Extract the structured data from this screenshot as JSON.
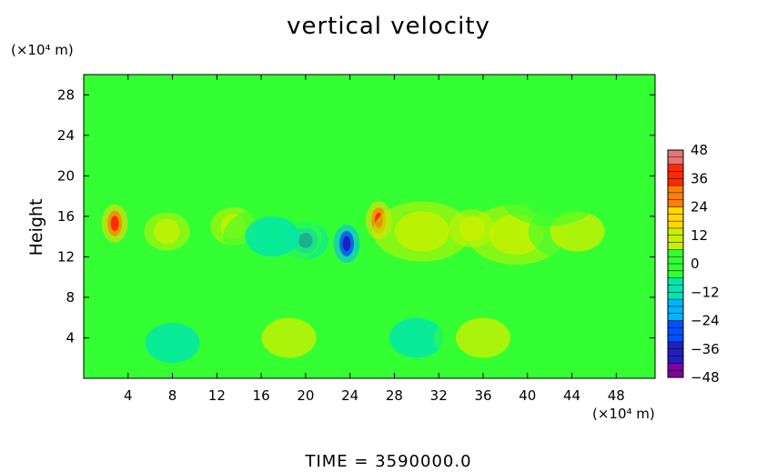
{
  "chart_data": {
    "type": "heatmap",
    "title": "vertical velocity",
    "xlabel": "",
    "ylabel": "Height",
    "x_unit": "(×10⁴ m)",
    "y_unit": "(×10⁴ m)",
    "xlim": [
      0,
      51.5
    ],
    "ylim": [
      0,
      30
    ],
    "x_ticks": [
      4,
      8,
      12,
      16,
      20,
      24,
      28,
      32,
      36,
      40,
      44,
      48
    ],
    "y_ticks": [
      4,
      8,
      12,
      16,
      20,
      24,
      28
    ],
    "colorbar": {
      "min": -48,
      "max": 48,
      "ticks": [
        48,
        36,
        24,
        12,
        0,
        -12,
        -24,
        -36,
        -48
      ],
      "colors": [
        "#e87474",
        "#ff2a00",
        "#ff7f00",
        "#ffd700",
        "#c8f000",
        "#33ff33",
        "#00e6b0",
        "#00b4ff",
        "#0050ff",
        "#2020c0",
        "#8000a0"
      ]
    },
    "field_features": [
      {
        "x": 2.8,
        "y": 15.3,
        "value": 40
      },
      {
        "x": 26.6,
        "y": 15.6,
        "value": 40
      },
      {
        "x": 23.7,
        "y": 13.3,
        "value": -38
      },
      {
        "x": 20.0,
        "y": 13.6,
        "value": -26
      },
      {
        "x": 7.5,
        "y": 14.5,
        "value": 20
      },
      {
        "x": 13.5,
        "y": 15.0,
        "value": 16
      },
      {
        "x": 35.0,
        "y": 14.8,
        "value": 18
      },
      {
        "x": 39.0,
        "y": 14.2,
        "value": 14
      },
      {
        "x": 30.5,
        "y": 14.5,
        "value": 14
      },
      {
        "x": 17.0,
        "y": 14.0,
        "value": -12
      },
      {
        "x": 44.5,
        "y": 14.5,
        "value": 10
      },
      {
        "x": 18.5,
        "y": 4.0,
        "value": 8
      },
      {
        "x": 30.0,
        "y": 4.0,
        "value": -8
      },
      {
        "x": 36.0,
        "y": 4.0,
        "value": 8
      },
      {
        "x": 8.0,
        "y": 3.5,
        "value": -8
      },
      {
        "x": 46.0,
        "y": 3.0,
        "value": -6
      },
      {
        "x": 42.0,
        "y": 18.0,
        "value": -6
      }
    ]
  },
  "footer": "TIME  =  3590000.0"
}
